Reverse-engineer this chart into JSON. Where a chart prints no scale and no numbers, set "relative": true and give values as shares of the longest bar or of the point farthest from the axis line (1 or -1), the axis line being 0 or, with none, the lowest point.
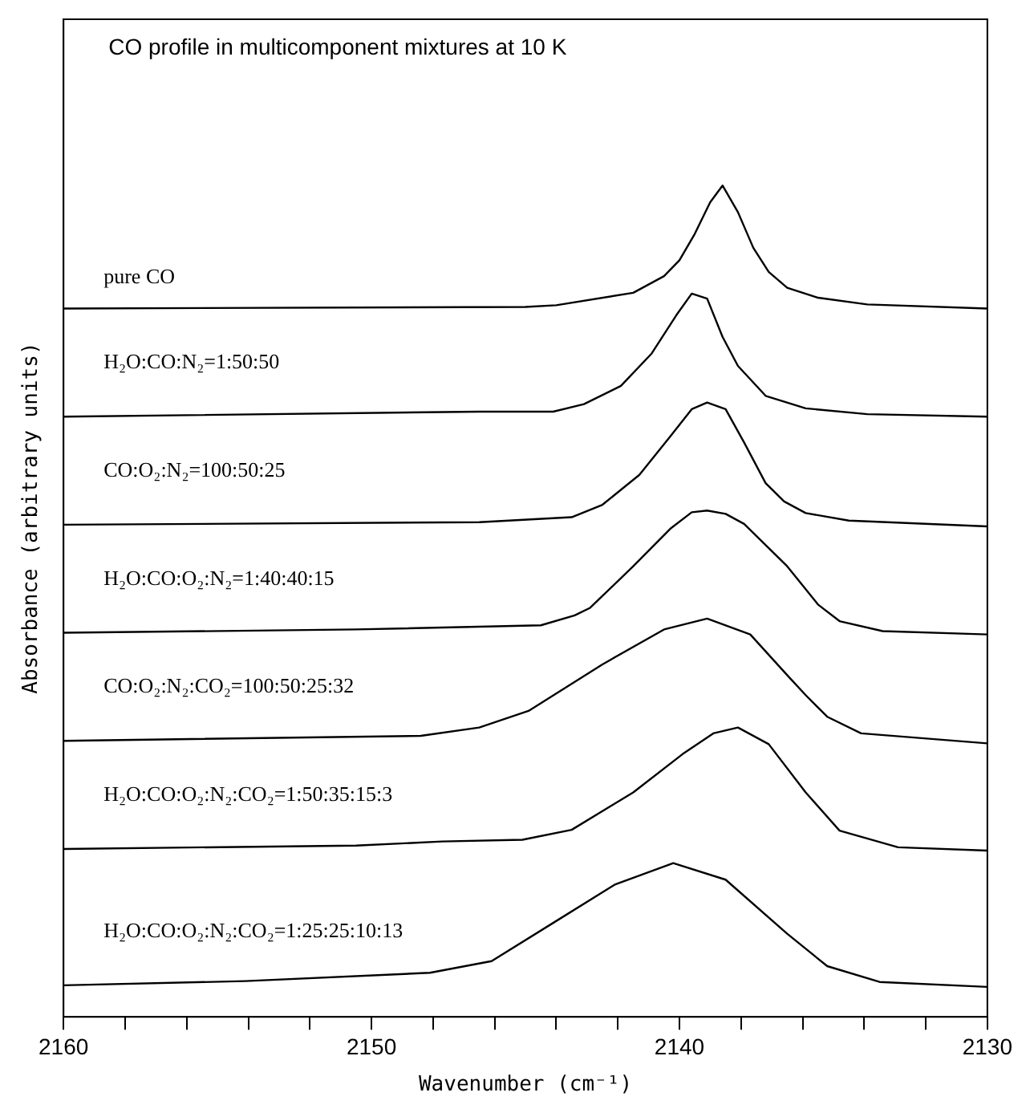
{
  "chart_data": {
    "type": "line",
    "title": "CO profile in multicomponent mixtures at 10 K",
    "xlabel": "Wavenumber (cm⁻¹)",
    "ylabel": "Absorbance (arbitrary units)",
    "relative": true,
    "xlim": [
      2160,
      2130
    ],
    "xticks": [
      2160,
      {
        "value": 2158,
        "label": null
      },
      {
        "value": 2156,
        "label": null
      },
      {
        "value": 2154,
        "label": null
      },
      {
        "value": 2152,
        "label": null
      },
      2150,
      {
        "value": 2148,
        "label": null
      },
      {
        "value": 2146,
        "label": null
      },
      {
        "value": 2144,
        "label": null
      },
      {
        "value": 2142,
        "label": null
      },
      2140,
      {
        "value": 2138,
        "label": null
      },
      {
        "value": 2136,
        "label": null
      },
      {
        "value": 2134,
        "label": null
      },
      {
        "value": 2132,
        "label": null
      },
      2130
    ],
    "grid": false,
    "legend": false,
    "marker": "none",
    "line_style": "solid",
    "series": [
      {
        "name": "pure CO",
        "color": "#000000",
        "x": [
          2160,
          2145,
          2144,
          2141.5,
          2140.5,
          2140,
          2139.5,
          2139,
          2138.6,
          2138.1,
          2137.6,
          2137.1,
          2136.5,
          2135.5,
          2133.9,
          2130
        ],
        "values": [
          0.852,
          0.854,
          0.856,
          0.871,
          0.891,
          0.91,
          0.942,
          0.98,
          1.0,
          0.968,
          0.925,
          0.896,
          0.877,
          0.865,
          0.857,
          0.852
        ]
      },
      {
        "name": "H₂O:CO:N₂=1:50:50",
        "color": "#000000",
        "x": [
          2160,
          2146.5,
          2144.1,
          2143.1,
          2141.9,
          2140.9,
          2140.1,
          2139.6,
          2139.1,
          2138.6,
          2138.1,
          2137.2,
          2135.9,
          2133.9,
          2130
        ],
        "values": [
          0.722,
          0.728,
          0.728,
          0.737,
          0.759,
          0.798,
          0.844,
          0.87,
          0.864,
          0.818,
          0.783,
          0.747,
          0.732,
          0.725,
          0.722
        ]
      },
      {
        "name": "CO:O₂:N₂=100:50:25",
        "color": "#000000",
        "x": [
          2160,
          2146.5,
          2143.5,
          2142.5,
          2141.3,
          2140.3,
          2139.6,
          2139.1,
          2138.5,
          2137.9,
          2137.2,
          2136.6,
          2135.9,
          2134.5,
          2130
        ],
        "values": [
          0.592,
          0.595,
          0.601,
          0.616,
          0.652,
          0.698,
          0.731,
          0.739,
          0.731,
          0.691,
          0.642,
          0.62,
          0.606,
          0.597,
          0.59
        ]
      },
      {
        "name": "H₂O:CO:O₂:N₂=1:40:40:15",
        "color": "#000000",
        "x": [
          2160,
          2150.5,
          2144.5,
          2143.4,
          2142.9,
          2141.5,
          2140.3,
          2139.6,
          2139.1,
          2138.5,
          2137.9,
          2136.5,
          2135.5,
          2134.8,
          2133.4,
          2130
        ],
        "values": [
          0.462,
          0.466,
          0.471,
          0.483,
          0.492,
          0.542,
          0.587,
          0.607,
          0.609,
          0.605,
          0.593,
          0.542,
          0.496,
          0.476,
          0.464,
          0.46
        ]
      },
      {
        "name": "CO:O₂:N₂:CO₂=100:50:25:32",
        "color": "#000000",
        "x": [
          2160,
          2148.4,
          2146.5,
          2144.9,
          2142.5,
          2140.5,
          2139.1,
          2137.7,
          2136.5,
          2135.9,
          2135.2,
          2134.1,
          2130
        ],
        "values": [
          0.332,
          0.338,
          0.348,
          0.368,
          0.424,
          0.466,
          0.479,
          0.46,
          0.411,
          0.387,
          0.361,
          0.341,
          0.329
        ]
      },
      {
        "name": "H₂O:CO:O₂:N₂:CO₂=1:50:35:15:3",
        "color": "#000000",
        "x": [
          2160,
          2150.5,
          2147.7,
          2145.1,
          2143.5,
          2141.5,
          2139.9,
          2138.9,
          2138.1,
          2137.1,
          2135.9,
          2134.8,
          2132.9,
          2130
        ],
        "values": [
          0.202,
          0.206,
          0.211,
          0.213,
          0.225,
          0.27,
          0.316,
          0.341,
          0.348,
          0.328,
          0.27,
          0.224,
          0.204,
          0.2
        ]
      },
      {
        "name": "H₂O:CO:O₂:N₂:CO₂=1:25:25:10:13",
        "color": "#000000",
        "x": [
          2160,
          2154.1,
          2148.1,
          2146.1,
          2144.1,
          2142.1,
          2140.2,
          2138.5,
          2136.5,
          2135.2,
          2133.5,
          2130
        ],
        "values": [
          0.038,
          0.043,
          0.053,
          0.067,
          0.113,
          0.159,
          0.185,
          0.165,
          0.1,
          0.061,
          0.042,
          0.036
        ]
      }
    ]
  }
}
